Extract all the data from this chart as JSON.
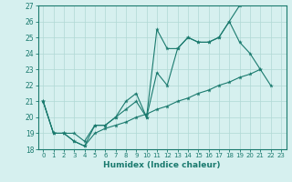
{
  "title": "",
  "xlabel": "Humidex (Indice chaleur)",
  "x_values": [
    0,
    1,
    2,
    3,
    4,
    5,
    6,
    7,
    8,
    9,
    10,
    11,
    12,
    13,
    14,
    15,
    16,
    17,
    18,
    19,
    20,
    21,
    22,
    23
  ],
  "line1": [
    21,
    19,
    19,
    18.5,
    18.2,
    19.5,
    19.5,
    20,
    21,
    21.5,
    20,
    25.5,
    24.3,
    24.3,
    25,
    24.7,
    24.7,
    25,
    26,
    27,
    null,
    null,
    null,
    null
  ],
  "line2": [
    21,
    19,
    19,
    19,
    18.5,
    19.5,
    19.5,
    20,
    20.5,
    21,
    20,
    22.8,
    22,
    24.3,
    25,
    24.7,
    24.7,
    25,
    26,
    24.7,
    24,
    23,
    22,
    null
  ],
  "line3": [
    21,
    19,
    19,
    18.5,
    18.2,
    19.0,
    19.3,
    19.5,
    19.7,
    20.0,
    20.2,
    20.5,
    20.7,
    21.0,
    21.2,
    21.5,
    21.7,
    22.0,
    22.2,
    22.5,
    22.7,
    23.0,
    null,
    null
  ],
  "line_color": "#1a7a6e",
  "bg_color": "#d6f0ef",
  "grid_color": "#b0d8d5",
  "ylim": [
    18,
    27
  ],
  "xlim": [
    -0.5,
    23.5
  ],
  "yticks": [
    18,
    19,
    20,
    21,
    22,
    23,
    24,
    25,
    26,
    27
  ],
  "xticks": [
    0,
    1,
    2,
    3,
    4,
    5,
    6,
    7,
    8,
    9,
    10,
    11,
    12,
    13,
    14,
    15,
    16,
    17,
    18,
    19,
    20,
    21,
    22,
    23
  ]
}
